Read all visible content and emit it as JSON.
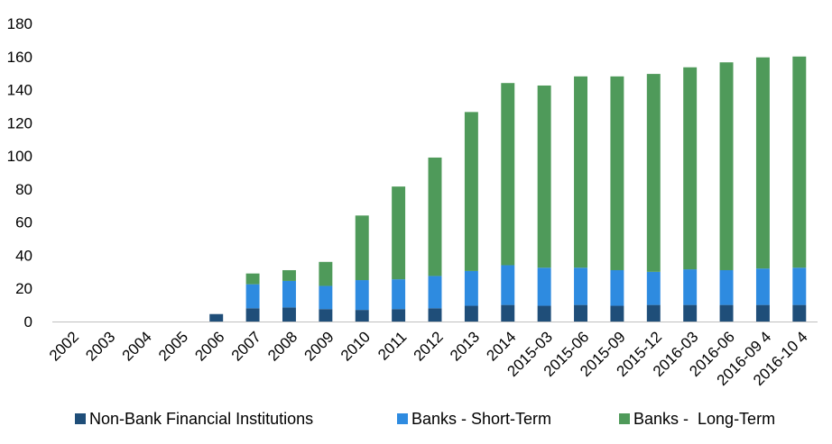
{
  "chart_data": {
    "type": "bar",
    "stacked": true,
    "categories": [
      "2002",
      "2003",
      "2004",
      "2005",
      "2006",
      "2007",
      "2008",
      "2009",
      "2010",
      "2011",
      "2012",
      "2013",
      "2014",
      "2015-03",
      "2015-06",
      "2015-09",
      "2015-12",
      "2016-03",
      "2016-06",
      "2016-09",
      "2016-10"
    ],
    "category_labels": [
      "2002",
      "2003",
      "2004",
      "2005",
      "2006",
      "2007",
      "2008",
      "2009",
      "2010",
      "2011",
      "2012",
      "2013",
      "2014",
      "2015-03",
      "2015-06",
      "2015-09",
      "2015-12",
      "2016-03",
      "2016-06",
      "2016-09 4",
      "2016-10 4"
    ],
    "series": [
      {
        "name": "Non-Bank Financial Institutions",
        "color": "#1f4e79",
        "values": [
          0,
          0,
          0,
          0,
          4.5,
          8,
          8.5,
          7.5,
          7,
          7.5,
          8,
          9.5,
          10,
          9.5,
          10,
          9.5,
          10,
          10,
          10,
          10,
          10
        ]
      },
      {
        "name": "Banks - Short-Term",
        "color": "#2e8be0",
        "values": [
          0,
          0,
          0,
          0,
          0,
          14.5,
          16,
          14,
          18,
          18,
          19.5,
          21,
          24,
          23,
          22.5,
          21.5,
          20,
          21.5,
          21,
          22,
          22.5
        ]
      },
      {
        "name": "Banks -  Long-Term",
        "color": "#4f9a5a",
        "values": [
          0,
          0,
          0,
          0,
          0,
          6.5,
          6.5,
          14.5,
          39,
          56,
          71.5,
          96,
          110,
          110,
          115.5,
          117,
          119.5,
          122,
          125.5,
          127.5,
          127.5
        ]
      }
    ],
    "ylim": [
      0,
      180
    ],
    "yticks": [
      0,
      20,
      40,
      60,
      80,
      100,
      120,
      140,
      160,
      180
    ],
    "grid": false,
    "legend_position": "bottom",
    "title": "",
    "xlabel": "",
    "ylabel": ""
  }
}
